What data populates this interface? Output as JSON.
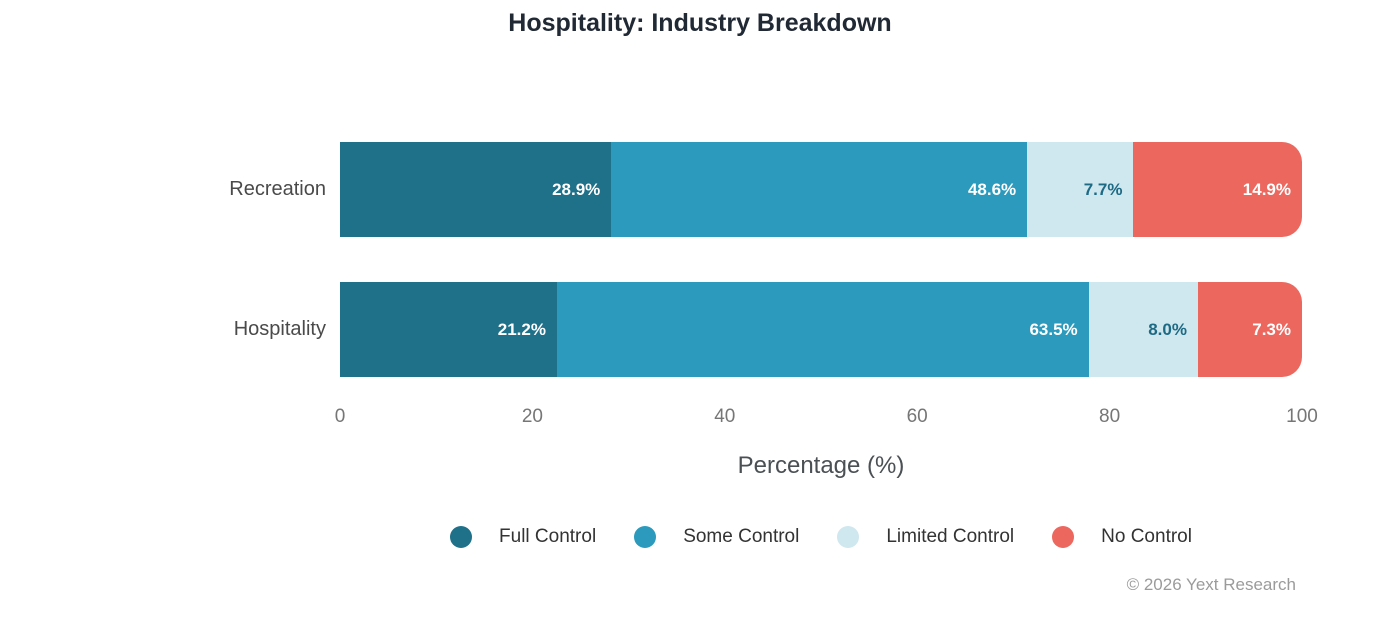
{
  "chart_data": {
    "type": "bar",
    "orientation": "horizontal-stacked",
    "title": "Hospitality: Industry Breakdown",
    "categories": [
      "Recreation",
      "Hospitality"
    ],
    "series": [
      {
        "name": "Full Control",
        "color": "#1f7089",
        "label_color": "#ffffff",
        "values": [
          28.9,
          21.2
        ]
      },
      {
        "name": "Some Control",
        "color": "#2b9abc",
        "label_color": "#ffffff",
        "values": [
          48.6,
          63.5
        ]
      },
      {
        "name": "Limited Control",
        "color": "#cfe7ee",
        "label_color": "#1d6a84",
        "values": [
          7.7,
          8.0
        ]
      },
      {
        "name": "No Control",
        "color": "#ec675e",
        "label_color": "#ffffff",
        "values": [
          14.9,
          7.3
        ]
      }
    ],
    "value_suffix": "%",
    "xlabel": "Percentage (%)",
    "xticks": [
      0,
      20,
      40,
      60,
      80,
      100
    ],
    "xlim": [
      0,
      100
    ],
    "grid": false,
    "legend_position": "bottom"
  },
  "footer": {
    "credit": "© 2026 Yext Research"
  }
}
